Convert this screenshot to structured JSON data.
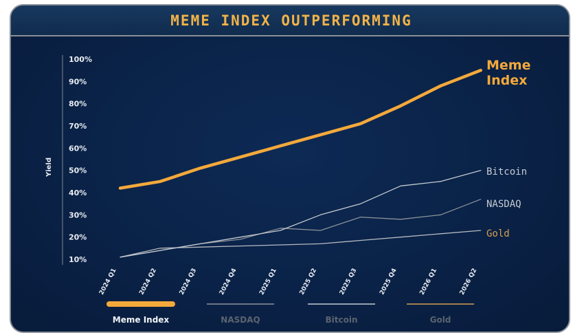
{
  "colors": {
    "meme": "#f4a93b",
    "bitcoin": "#c7cbd1",
    "nasdaq": "#8d9299",
    "gold": "#b6bac0",
    "gold_label": "#d4a052",
    "legend_muted": "#5b6370",
    "title": "#f2b348"
  },
  "chart_data": {
    "type": "line",
    "title": "MEME INDEX OUTPERFORMING",
    "ylabel": "Yield",
    "xlabel": "",
    "y_ticks": [
      "100%",
      "90%",
      "80%",
      "70%",
      "60%",
      "50%",
      "40%",
      "30%",
      "20%",
      "10%"
    ],
    "ylim": [
      10,
      100
    ],
    "categories": [
      "2024 Q1",
      "2024 Q2",
      "2024 Q3",
      "2024 Q4",
      "2025 Q1",
      "2025 Q2",
      "2025 Q3",
      "2025 Q4",
      "2026 Q1",
      "2026 Q2"
    ],
    "series": [
      {
        "name": "Meme Index",
        "end_label": [
          "Meme",
          "Index"
        ],
        "color_key": "meme",
        "values": [
          42,
          45,
          51,
          56,
          61,
          66,
          71,
          79,
          88,
          95
        ]
      },
      {
        "name": "Bitcoin",
        "end_label": [
          "Bitcoin"
        ],
        "color_key": "bitcoin",
        "values": [
          11,
          14,
          17,
          20,
          23,
          30,
          35,
          43,
          45,
          50
        ]
      },
      {
        "name": "NASDAQ",
        "end_label": [
          "NASDAQ"
        ],
        "color_key": "nasdaq",
        "values": [
          11,
          14,
          17,
          19,
          24,
          23,
          29,
          28,
          30,
          37
        ]
      },
      {
        "name": "Gold",
        "end_label": [
          "Gold"
        ],
        "color_key": "gold",
        "values": [
          11,
          15,
          15.5,
          16,
          16.5,
          17,
          18.5,
          20,
          21.5,
          23
        ]
      }
    ],
    "legend": {
      "placement": "bottom",
      "items": [
        {
          "label": "Meme Index",
          "active": true,
          "color_key": "meme"
        },
        {
          "label": "NASDAQ",
          "active": false,
          "color_key": "nasdaq"
        },
        {
          "label": "Bitcoin",
          "active": false,
          "color_key": "bitcoin"
        },
        {
          "label": "Gold",
          "active": false,
          "color_key": "gold_label"
        }
      ]
    },
    "grid": false
  }
}
